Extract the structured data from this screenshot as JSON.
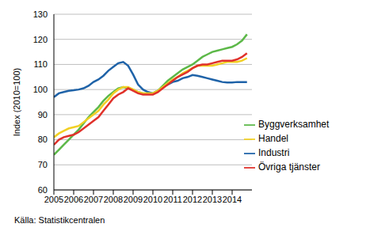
{
  "chart_data": {
    "type": "line",
    "y_label": "Index (2010=100)",
    "annotations": [
      "Källa: Statistikcentralen"
    ],
    "x": [
      2005,
      2005.25,
      2005.5,
      2005.75,
      2006,
      2006.25,
      2006.5,
      2006.75,
      2007,
      2007.25,
      2007.5,
      2007.75,
      2008,
      2008.25,
      2008.5,
      2008.75,
      2009,
      2009.25,
      2009.5,
      2009.75,
      2010,
      2010.25,
      2010.5,
      2010.75,
      2011,
      2011.25,
      2011.5,
      2011.75,
      2012,
      2012.25,
      2012.5,
      2012.75,
      2013,
      2013.25,
      2013.5,
      2013.75,
      2014,
      2014.25,
      2014.5,
      2014.75
    ],
    "xlim": [
      2005,
      2015
    ],
    "xticks": [
      2005,
      2006,
      2007,
      2008,
      2009,
      2010,
      2011,
      2012,
      2013,
      2014
    ],
    "ylim": [
      60,
      130
    ],
    "yticks": [
      60,
      70,
      80,
      90,
      100,
      110,
      120,
      130
    ],
    "grid": true,
    "legend": "right",
    "series": [
      {
        "name": "Industri",
        "color": "#1f63a8",
        "values": [
          97,
          98.5,
          99,
          99.5,
          99.7,
          100,
          100.5,
          101.5,
          103,
          104,
          105.5,
          107.5,
          109,
          110.5,
          111,
          109.5,
          106,
          102,
          100,
          99,
          98.5,
          99.5,
          101,
          102,
          103,
          103.5,
          104.5,
          105,
          105.8,
          105.5,
          105,
          104.5,
          104,
          103.5,
          103,
          102.8,
          102.8,
          103,
          103,
          103
        ]
      },
      {
        "name": "Byggverksamhet",
        "color": "#5cb848",
        "values": [
          74,
          76,
          78,
          80,
          82,
          84,
          86.5,
          89,
          91,
          93,
          95.5,
          97.5,
          99,
          100.5,
          101,
          100.5,
          100,
          99,
          98.5,
          98.5,
          98.5,
          99.5,
          101.5,
          103.5,
          105,
          106.5,
          108,
          109,
          110,
          111.5,
          113,
          114,
          115,
          115.5,
          116,
          116.5,
          117,
          118,
          119.5,
          122
        ]
      },
      {
        "name": "Handel",
        "color": "#f2d024",
        "values": [
          81,
          82.5,
          83.5,
          84.5,
          85,
          85.5,
          87,
          88.5,
          90,
          91.5,
          94,
          96,
          98.5,
          100,
          101,
          101,
          100,
          99,
          98.5,
          98.5,
          98.5,
          99.5,
          101,
          102.5,
          104,
          105,
          106.5,
          107.5,
          108.5,
          109.5,
          109.5,
          109.5,
          109.5,
          110,
          110.5,
          111,
          111,
          111,
          111.5,
          112.5
        ]
      },
      {
        "name": "Övriga tjänster",
        "color": "#e0312a",
        "values": [
          78,
          80,
          81,
          81.5,
          82,
          83,
          84.5,
          86,
          87.5,
          89,
          91.5,
          94,
          96.5,
          98,
          99,
          100.5,
          99.5,
          98.5,
          98,
          98,
          98,
          99,
          100.5,
          102,
          103.5,
          105,
          106,
          107,
          108.5,
          109.5,
          110,
          110,
          110.5,
          111,
          111.5,
          111.5,
          111.5,
          112,
          113,
          114.5
        ]
      }
    ]
  }
}
